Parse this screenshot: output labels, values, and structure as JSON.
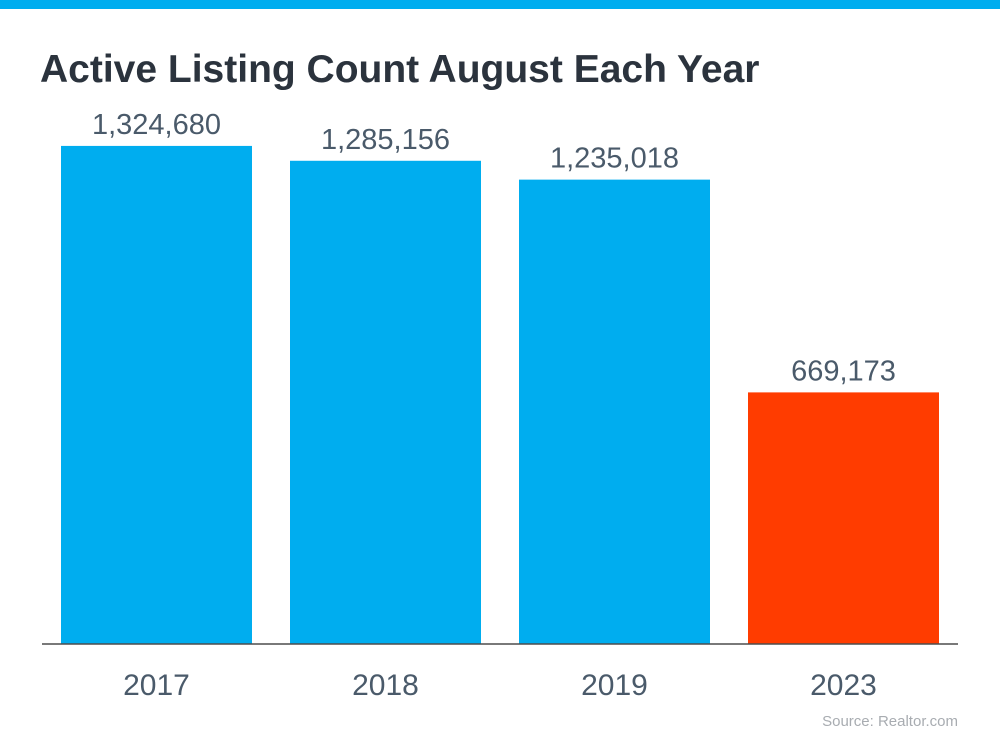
{
  "colors": {
    "top_bar": "#00adef",
    "bar_default": "#00adef",
    "bar_highlight": "#ff3c00",
    "axis": "#4d4d4d",
    "value_label": "#4a5a6a",
    "tick_label": "#4a5a6a"
  },
  "chart_data": {
    "type": "bar",
    "title": "Active Listing Count August Each Year",
    "xlabel": "",
    "ylabel": "",
    "categories": [
      "2017",
      "2018",
      "2019",
      "2023"
    ],
    "values": [
      1324680,
      1285156,
      1235018,
      669173
    ],
    "value_labels": [
      "1,324,680",
      "1,285,156",
      "1,235,018",
      "669,173"
    ],
    "highlight": [
      false,
      false,
      false,
      true
    ],
    "ylim": [
      0,
      1500000
    ],
    "grid": false,
    "legend": "none"
  },
  "footer": {
    "source": "Source: Realtor.com"
  }
}
